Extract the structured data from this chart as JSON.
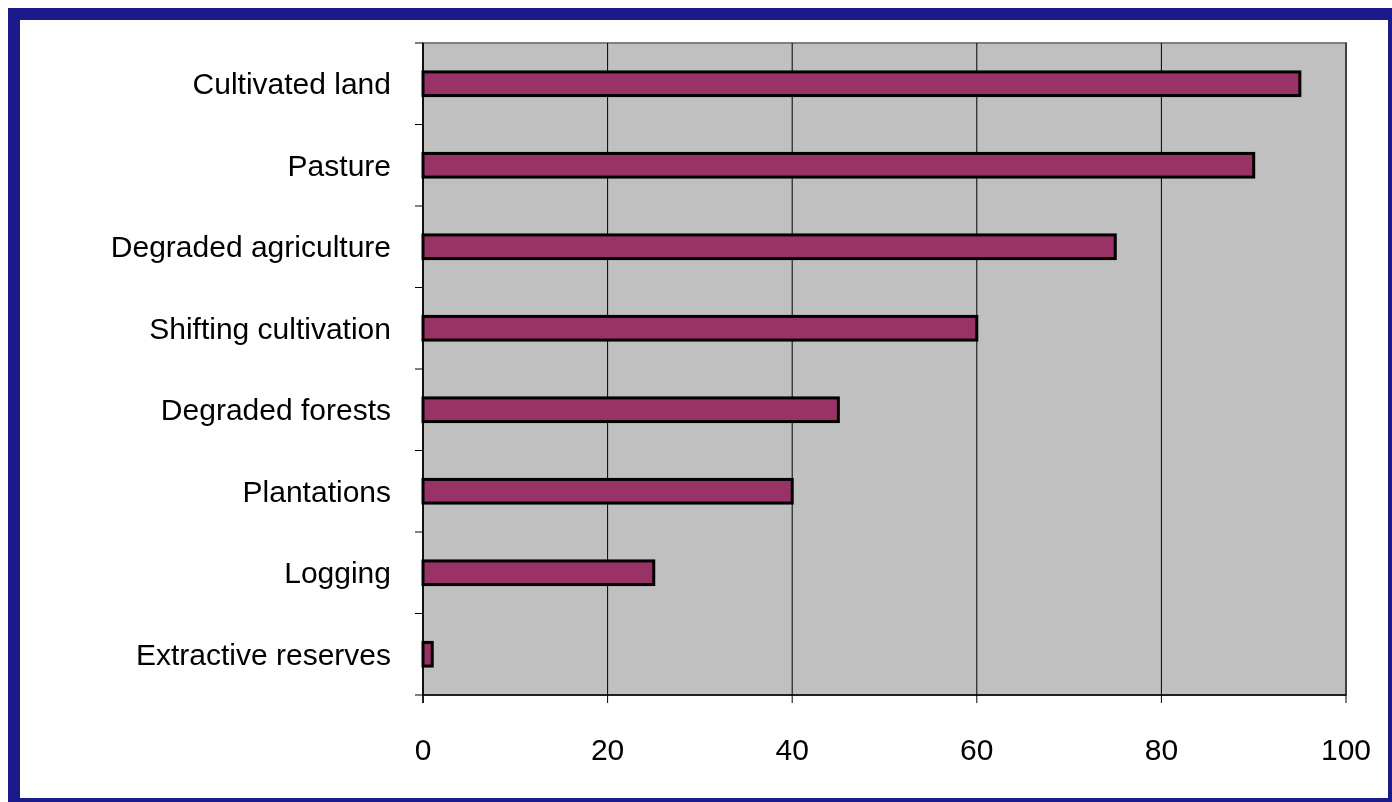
{
  "chart_data": {
    "type": "bar",
    "orientation": "horizontal",
    "categories": [
      "Cultivated land",
      "Pasture",
      "Degraded agriculture",
      "Shifting cultivation",
      "Degraded forests",
      "Plantations",
      "Logging",
      "Extractive reserves"
    ],
    "values": [
      95,
      90,
      75,
      60,
      45,
      40,
      25,
      1
    ],
    "color": "#993366",
    "xlim": [
      0,
      100
    ],
    "xticks": [
      0,
      20,
      40,
      60,
      80,
      100
    ],
    "grid": "x"
  }
}
